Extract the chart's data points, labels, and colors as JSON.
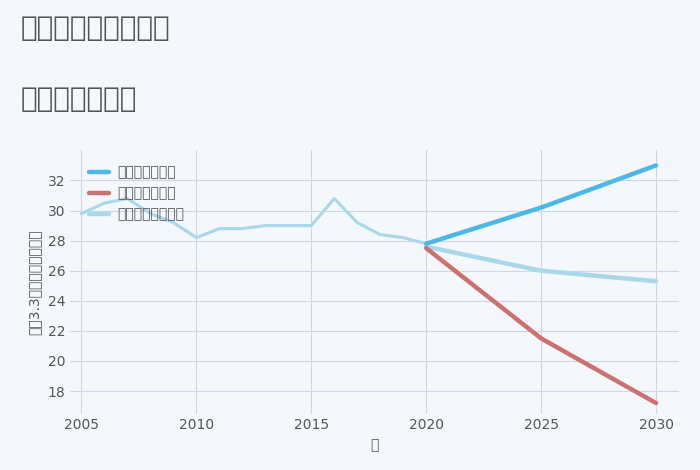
{
  "title_line1": "千葉県市原市飯給の",
  "title_line2": "土地の価格推移",
  "xlabel": "年",
  "ylabel": "坪（3.3㎡）単価（万円）",
  "background_color": "#f4f7fb",
  "plot_bg_color": "#f4f7fb",
  "xlim": [
    2004.5,
    2031
  ],
  "ylim": [
    16.5,
    34
  ],
  "yticks": [
    18,
    20,
    22,
    24,
    26,
    28,
    30,
    32
  ],
  "xticks": [
    2005,
    2010,
    2015,
    2020,
    2025,
    2030
  ],
  "historical": {
    "x": [
      2005,
      2006,
      2007,
      2008,
      2009,
      2010,
      2011,
      2012,
      2013,
      2014,
      2015,
      2016,
      2017,
      2018,
      2019,
      2020
    ],
    "y": [
      29.8,
      30.5,
      30.8,
      29.8,
      29.2,
      28.2,
      28.8,
      28.8,
      29.0,
      29.0,
      29.0,
      30.8,
      29.2,
      28.4,
      28.2,
      27.8
    ],
    "color": "#a8d8ea",
    "linewidth": 2.2
  },
  "good": {
    "x": [
      2020,
      2025,
      2030
    ],
    "y": [
      27.8,
      30.2,
      33.0
    ],
    "color": "#4db8e8",
    "linewidth": 3.2,
    "label": "グッドシナリオ"
  },
  "bad": {
    "x": [
      2020,
      2025,
      2030
    ],
    "y": [
      27.5,
      21.5,
      17.2
    ],
    "color": "#cd7070",
    "linewidth": 3.2,
    "label": "バッドシナリオ"
  },
  "normal": {
    "x": [
      2020,
      2025,
      2030
    ],
    "y": [
      27.6,
      26.0,
      25.3
    ],
    "color": "#a8d8ea",
    "linewidth": 3.2,
    "label": "ノーマルシナリオ"
  },
  "grid_color": "#ccd8e8",
  "title_fontsize": 20,
  "label_fontsize": 10,
  "tick_fontsize": 10,
  "legend_fontsize": 10,
  "title_color": "#555555"
}
